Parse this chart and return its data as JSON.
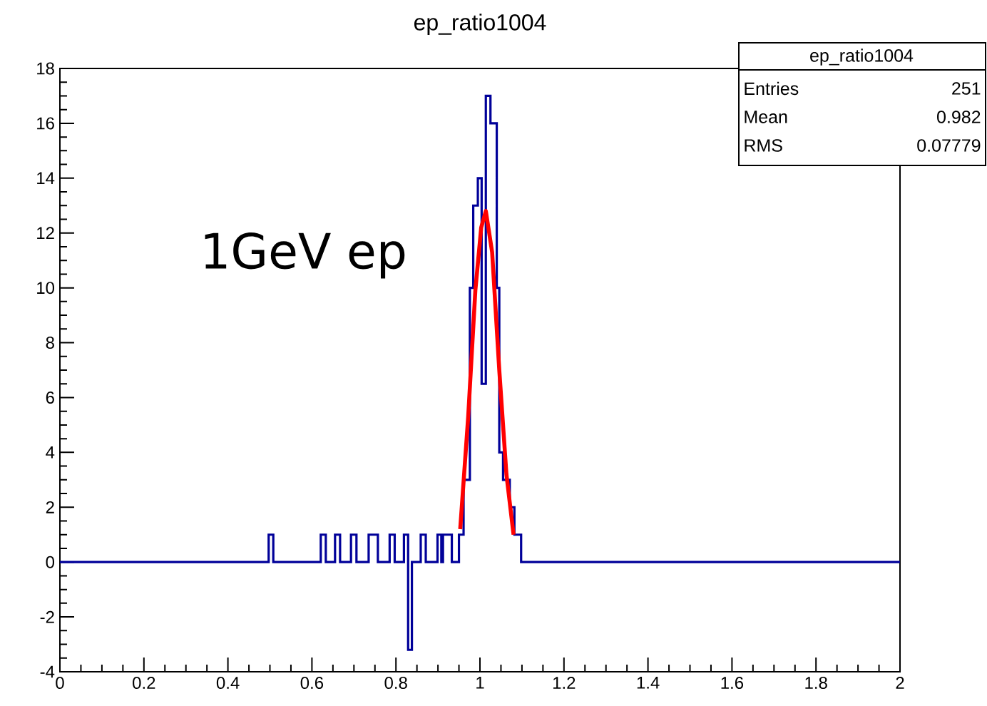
{
  "chart_data": {
    "type": "histogram",
    "title": "ep_ratio1004",
    "series": [
      {
        "color": "#000099",
        "bins": [
          0,
          0.497,
          0.508,
          0.621,
          0.633,
          0.655,
          0.667,
          0.693,
          0.706,
          0.735,
          0.757,
          0.785,
          0.797,
          0.819,
          0.829,
          0.838,
          0.859,
          0.871,
          0.899,
          0.908,
          0.912,
          0.933,
          0.95,
          0.961,
          0.976,
          0.984,
          0.995,
          1.004,
          1.014,
          1.025,
          1.04,
          1.046,
          1.055,
          1.071,
          1.082,
          1.098,
          2
        ],
        "values": [
          0,
          1,
          0,
          1,
          0,
          1,
          0,
          1,
          0,
          1,
          0,
          1,
          0,
          1,
          -3.2,
          0,
          1,
          0,
          1,
          0,
          1,
          0,
          1,
          3,
          10,
          13,
          14,
          6.5,
          17,
          16,
          10,
          4,
          3,
          2,
          1,
          0
        ]
      },
      {
        "type": "line",
        "color": "#ff0000",
        "x": [
          0.953,
          0.972,
          0.989,
          1.003,
          1.014,
          1.029,
          1.046,
          1.063,
          1.08
        ],
        "values": [
          1.2,
          5.3,
          9.9,
          12.2,
          12.8,
          11.3,
          7.0,
          3.2,
          1.0
        ]
      }
    ],
    "xlim": [
      0,
      2
    ],
    "ylim": [
      -4,
      18
    ],
    "xticks": [
      0,
      0.2,
      0.4,
      0.6,
      0.8,
      1,
      1.2,
      1.4,
      1.6,
      1.8,
      2
    ],
    "yticks": [
      -4,
      -2,
      0,
      2,
      4,
      6,
      8,
      10,
      12,
      14,
      16,
      18
    ],
    "annotations": [
      "1GeV ep",
      "ep_ratio1004",
      "Entries",
      "251",
      "Mean",
      "0.982",
      "RMS",
      "0.07779"
    ]
  }
}
